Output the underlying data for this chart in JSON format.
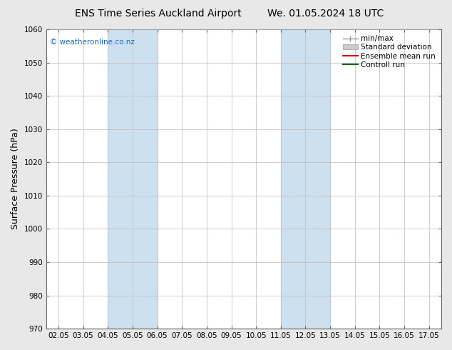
{
  "title_left": "ENS Time Series Auckland Airport",
  "title_right": "We. 01.05.2024 18 UTC",
  "ylabel": "Surface Pressure (hPa)",
  "ylim": [
    970,
    1060
  ],
  "yticks": [
    970,
    980,
    990,
    1000,
    1010,
    1020,
    1030,
    1040,
    1050,
    1060
  ],
  "x_labels": [
    "02.05",
    "03.05",
    "04.05",
    "05.05",
    "06.05",
    "07.05",
    "08.05",
    "09.05",
    "10.05",
    "11.05",
    "12.05",
    "13.05",
    "14.05",
    "15.05",
    "16.05",
    "17.05"
  ],
  "x_values": [
    0,
    1,
    2,
    3,
    4,
    5,
    6,
    7,
    8,
    9,
    10,
    11,
    12,
    13,
    14,
    15
  ],
  "shaded_regions": [
    {
      "xmin": 2,
      "xmax": 4,
      "color": "#cce0f0"
    },
    {
      "xmin": 9,
      "xmax": 11,
      "color": "#cce0f0"
    }
  ],
  "watermark": "© weatheronline.co.nz",
  "watermark_color": "#1a6bbf",
  "fig_background_color": "#e8e8e8",
  "plot_bg_color": "#ffffff",
  "grid_color": "#bbbbbb",
  "legend_items": [
    {
      "label": "min/max",
      "color": "#aaaaaa",
      "lw": 1.0,
      "style": "-"
    },
    {
      "label": "Standard deviation",
      "color": "#cccccc",
      "lw": 6,
      "style": "-"
    },
    {
      "label": "Ensemble mean run",
      "color": "#cc0000",
      "lw": 1.5,
      "style": "-"
    },
    {
      "label": "Controll run",
      "color": "#006600",
      "lw": 1.5,
      "style": "-"
    }
  ],
  "title_fontsize": 10,
  "tick_fontsize": 7.5,
  "ylabel_fontsize": 9,
  "legend_fontsize": 7.5
}
